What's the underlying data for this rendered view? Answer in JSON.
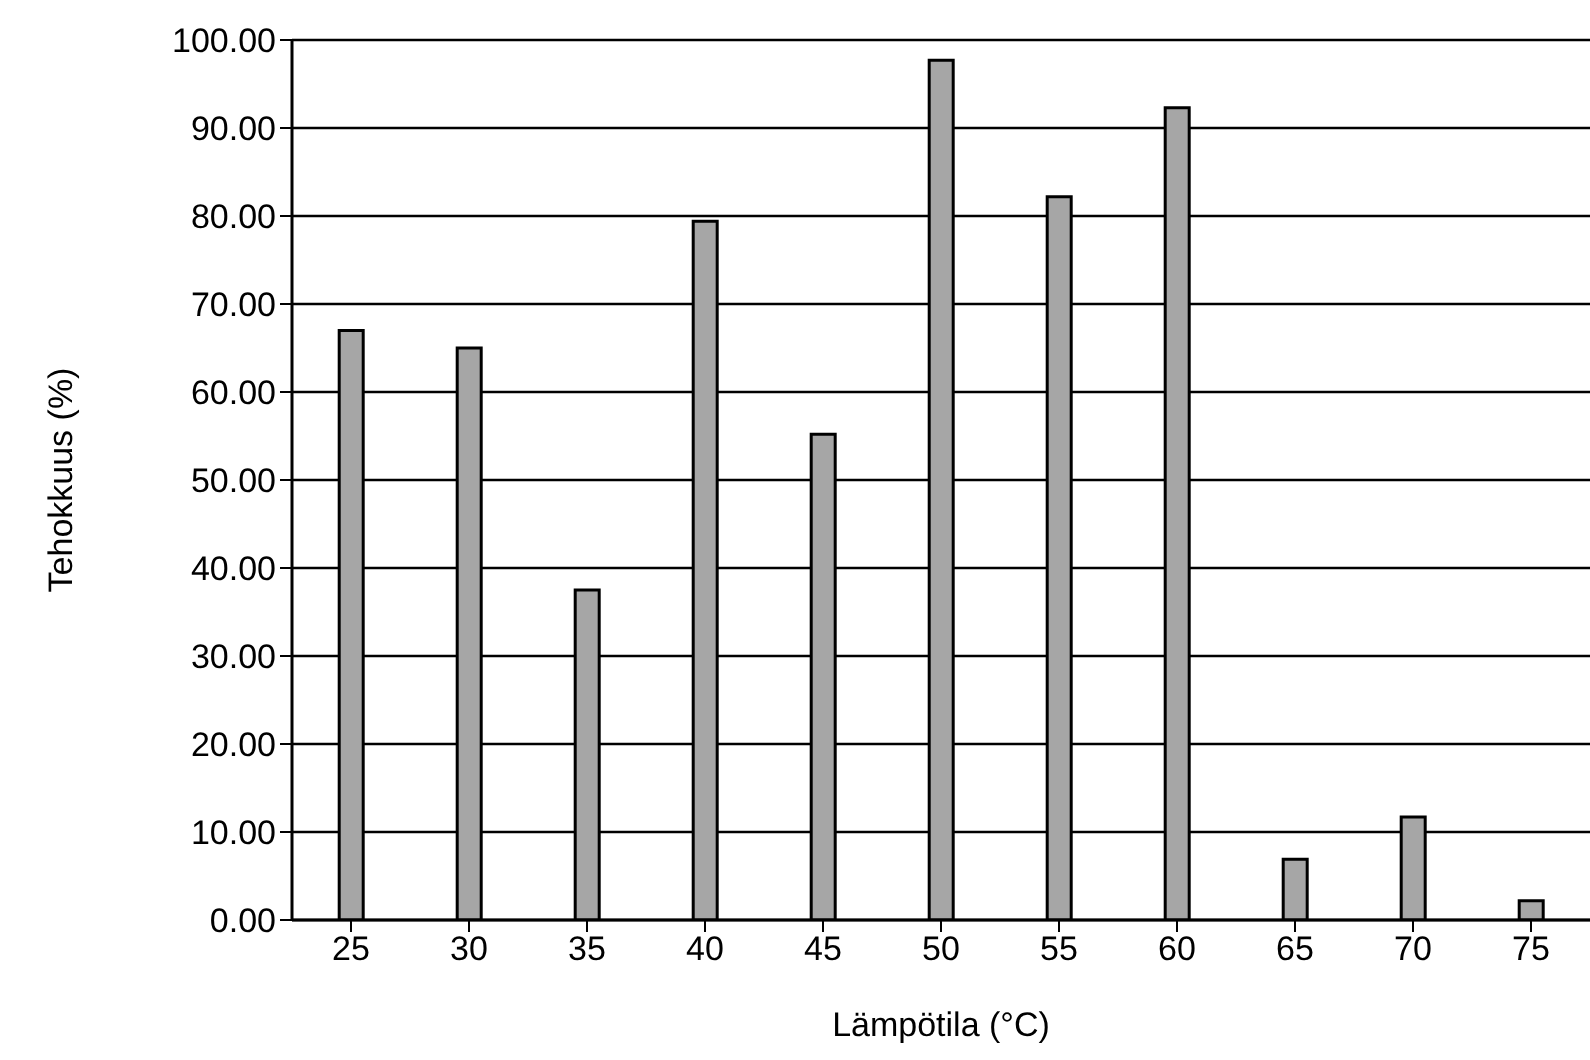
{
  "chart_data": {
    "type": "bar",
    "xlabel": "Lämpötila    (°C)",
    "ylabel": "Tehokkuus (%)",
    "categories": [
      "25",
      "30",
      "35",
      "40",
      "45",
      "50",
      "55",
      "60",
      "65",
      "70",
      "75"
    ],
    "values": [
      67,
      65,
      37.5,
      79.4,
      55.2,
      97.7,
      82.2,
      92.3,
      6.9,
      11.7,
      2.2
    ],
    "color": "#a6a6a6",
    "ylim": [
      0,
      100
    ],
    "yticks": [
      {
        "value": 0,
        "label": "0.00"
      },
      {
        "value": 10,
        "label": "10.00"
      },
      {
        "value": 20,
        "label": "20.00"
      },
      {
        "value": 30,
        "label": "30.00"
      },
      {
        "value": 40,
        "label": "40.00"
      },
      {
        "value": 50,
        "label": "50.00"
      },
      {
        "value": 60,
        "label": "60.00"
      },
      {
        "value": 70,
        "label": "70.00"
      },
      {
        "value": 80,
        "label": "80.00"
      },
      {
        "value": 90,
        "label": "90.00"
      },
      {
        "value": 100,
        "label": "100.00"
      }
    ],
    "grid": "y"
  }
}
